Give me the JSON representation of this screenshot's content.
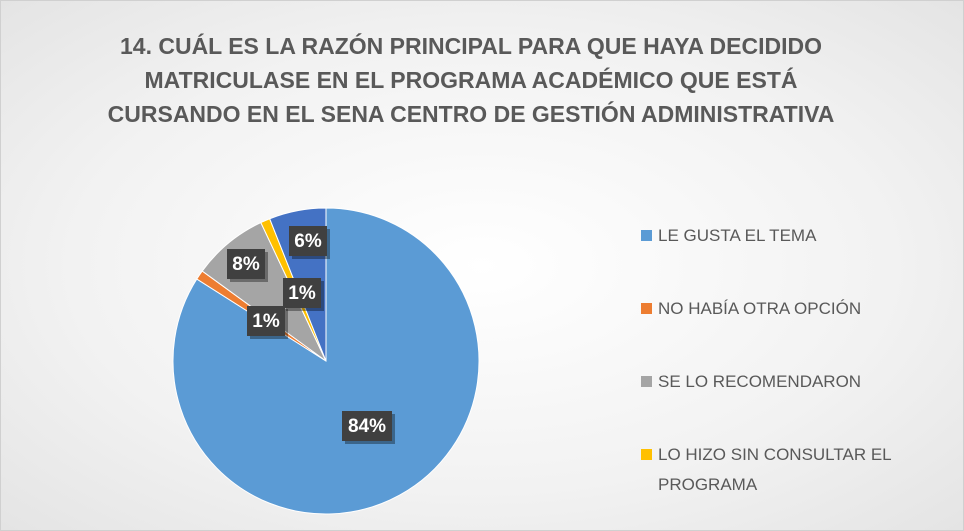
{
  "chart_data": {
    "type": "pie",
    "title": "14. CUÁL ES LA RAZÓN PRINCIPAL PARA QUE HAYA DECIDIDO MATRICULASE EN EL PROGRAMA ACADÉMICO QUE ESTÁ CURSANDO EN EL SENA CENTRO DE GESTIÓN ADMINISTRATIVA",
    "categories": [
      "LE GUSTA EL TEMA",
      "NO HABÍA OTRA OPCIÓN",
      "SE LO RECOMENDARON",
      "LO HIZO SIN CONSULTAR EL PROGRAMA",
      null
    ],
    "values": [
      84,
      1,
      8,
      1,
      6
    ],
    "value_labels": [
      "84%",
      "1%",
      "8%",
      "1%",
      "6%"
    ],
    "colors": [
      "#5b9bd5",
      "#ed7d31",
      "#a5a5a5",
      "#ffc000",
      "#4472c4"
    ],
    "legend": "right"
  }
}
